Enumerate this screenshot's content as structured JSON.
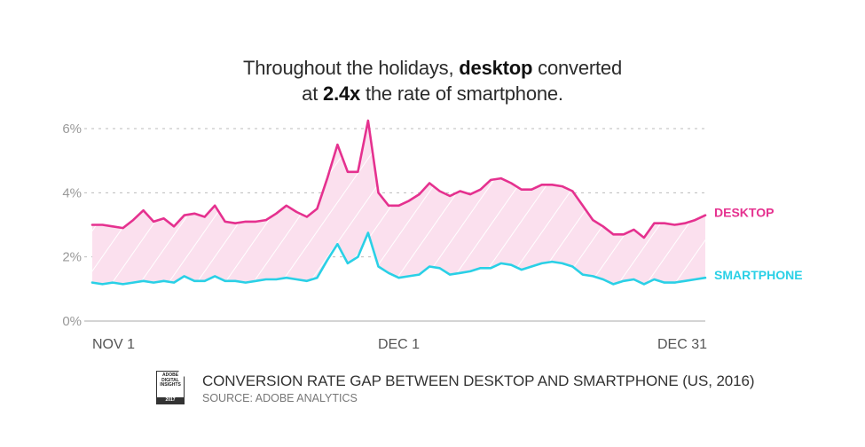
{
  "headline": {
    "part1": "Throughout the holidays, ",
    "bold1": "desktop",
    "part2": " converted",
    "line2_pre": "at ",
    "bold2": "2.4x",
    "line2_post": " the rate of smartphone."
  },
  "footer": {
    "badge_line1": "ADOBE",
    "badge_line2": "DIGITAL",
    "badge_line3": "INSIGHTS",
    "badge_year": "2017",
    "title": "CONVERSION RATE GAP BETWEEN DESKTOP AND SMARTPHONE (US, 2016)",
    "source": "SOURCE: ADOBE ANALYTICS"
  },
  "colors": {
    "desktop": "#e5318f",
    "smartphone": "#2ad0e6",
    "fill": "#fbe0ee",
    "grid": "#bbbbbb",
    "axis_text": "#999999"
  },
  "chart_data": {
    "type": "line",
    "xlabel": "",
    "ylabel": "",
    "ylim": [
      0,
      6
    ],
    "yticks": [
      "0%",
      "2%",
      "4%",
      "6%"
    ],
    "ytick_values": [
      0,
      2,
      4,
      6
    ],
    "xtick_labels": [
      "NOV 1",
      "DEC 1",
      "DEC 31"
    ],
    "xtick_index": [
      0,
      30,
      60
    ],
    "grid": true,
    "fill_between": true,
    "series": [
      {
        "name": "DESKTOP",
        "color": "#e5318f",
        "values": [
          3.0,
          3.0,
          2.95,
          2.9,
          3.15,
          3.45,
          3.1,
          3.2,
          2.95,
          3.3,
          3.35,
          3.25,
          3.6,
          3.1,
          3.05,
          3.1,
          3.1,
          3.15,
          3.35,
          3.6,
          3.4,
          3.25,
          3.5,
          4.45,
          5.5,
          4.65,
          4.65,
          6.25,
          4.0,
          3.6,
          3.6,
          3.75,
          3.95,
          4.3,
          4.05,
          3.9,
          4.05,
          3.95,
          4.1,
          4.4,
          4.45,
          4.3,
          4.1,
          4.1,
          4.25,
          4.25,
          4.2,
          4.05,
          3.6,
          3.15,
          2.95,
          2.7,
          2.7,
          2.85,
          2.6,
          3.05,
          3.05,
          3.0,
          3.05,
          3.15,
          3.3
        ]
      },
      {
        "name": "SMARTPHONE",
        "color": "#2ad0e6",
        "values": [
          1.2,
          1.15,
          1.2,
          1.15,
          1.2,
          1.25,
          1.2,
          1.25,
          1.2,
          1.4,
          1.25,
          1.25,
          1.4,
          1.25,
          1.25,
          1.2,
          1.25,
          1.3,
          1.3,
          1.35,
          1.3,
          1.25,
          1.35,
          1.9,
          2.4,
          1.8,
          2.0,
          2.75,
          1.7,
          1.5,
          1.35,
          1.4,
          1.45,
          1.7,
          1.65,
          1.45,
          1.5,
          1.55,
          1.65,
          1.65,
          1.8,
          1.75,
          1.6,
          1.7,
          1.8,
          1.85,
          1.8,
          1.7,
          1.45,
          1.4,
          1.3,
          1.15,
          1.25,
          1.3,
          1.15,
          1.3,
          1.2,
          1.2,
          1.25,
          1.3,
          1.35
        ]
      }
    ]
  }
}
